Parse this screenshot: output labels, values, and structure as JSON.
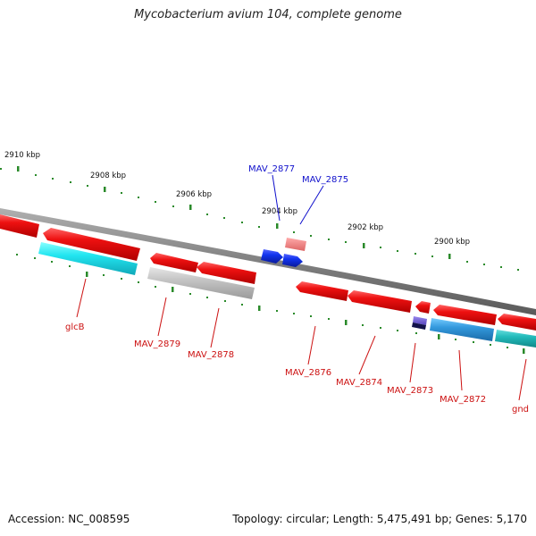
{
  "title": "Mycobacterium avium 104, complete genome",
  "footer": {
    "accession": "Accession: NC_008595",
    "summary": "Topology: circular; Length: 5,475,491 bp; Genes: 5,170"
  },
  "colors": {
    "backbone": "#8a8a8a",
    "cds": "#ee1111",
    "gene_blue": "#1133ee",
    "pseudo_gray": "#bdbdbd",
    "cyan": "#22ddee",
    "teal": "#22bbbb",
    "light_blue": "#3399dd",
    "ticks": "#2a8a2a"
  },
  "tick_labels": [
    "2910 kbp",
    "2908 kbp",
    "2906 kbp",
    "2904 kbp",
    "2902 kbp",
    "2900 kbp"
  ],
  "gene_labels_red": [
    "glcB",
    "MAV_2879",
    "MAV_2878",
    "MAV_2876",
    "MAV_2874",
    "MAV_2873",
    "MAV_2872",
    "gnd"
  ],
  "gene_labels_blue": [
    "MAV_2877",
    "MAV_2875"
  ]
}
